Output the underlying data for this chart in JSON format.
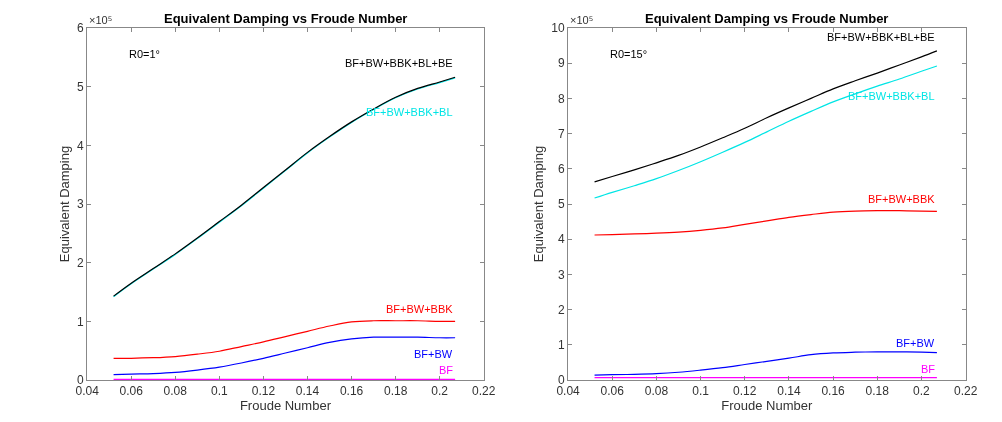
{
  "chart_data": [
    {
      "type": "line",
      "title": "Equivalent Damping vs Froude Number",
      "xlabel": "Froude Number",
      "ylabel": "Equivalent Damping",
      "annotations": [
        "R0=1°",
        "×10⁵"
      ],
      "x": [
        0.052,
        0.06,
        0.07,
        0.08,
        0.09,
        0.1,
        0.11,
        0.12,
        0.13,
        0.14,
        0.15,
        0.16,
        0.17,
        0.18,
        0.19,
        0.2,
        0.207
      ],
      "series": [
        {
          "name": "BF",
          "color": "#ff00ff",
          "values": [
            0.01,
            0.01,
            0.01,
            0.01,
            0.01,
            0.01,
            0.01,
            0.01,
            0.01,
            0.01,
            0.01,
            0.01,
            0.01,
            0.01,
            0.01,
            0.01,
            0.01
          ]
        },
        {
          "name": "BF+BW",
          "color": "#0000ff",
          "values": [
            0.09,
            0.1,
            0.11,
            0.13,
            0.17,
            0.22,
            0.29,
            0.37,
            0.46,
            0.55,
            0.64,
            0.7,
            0.73,
            0.73,
            0.73,
            0.72,
            0.72
          ]
        },
        {
          "name": "BF+BW+BBK",
          "color": "#ff0000",
          "values": [
            0.37,
            0.37,
            0.38,
            0.4,
            0.44,
            0.49,
            0.57,
            0.65,
            0.74,
            0.83,
            0.92,
            0.99,
            1.01,
            1.01,
            1.01,
            1.0,
            1.0
          ]
        },
        {
          "name": "BF+BW+BBK+BL",
          "color": "#00e5e5",
          "values": [
            1.42,
            1.64,
            1.89,
            2.14,
            2.41,
            2.69,
            2.97,
            3.27,
            3.57,
            3.87,
            4.14,
            4.39,
            4.61,
            4.81,
            4.96,
            5.07,
            5.15
          ]
        },
        {
          "name": "BF+BW+BBK+BL+BE",
          "color": "#000000",
          "values": [
            1.43,
            1.65,
            1.9,
            2.15,
            2.42,
            2.7,
            2.98,
            3.28,
            3.58,
            3.88,
            4.15,
            4.4,
            4.62,
            4.82,
            4.97,
            5.08,
            5.16
          ]
        }
      ],
      "xlim": [
        0.04,
        0.22
      ],
      "xticks": [
        0.04,
        0.06,
        0.08,
        0.1,
        0.12,
        0.14,
        0.16,
        0.18,
        0.2,
        0.22
      ],
      "ylim": [
        0,
        6
      ],
      "yticks": [
        0,
        1,
        2,
        3,
        4,
        5,
        6
      ]
    },
    {
      "type": "line",
      "title": "Equivalent Damping vs Froude Number",
      "xlabel": "Froude Number",
      "ylabel": "Equivalent Damping",
      "annotations": [
        "R0=15°",
        "×10⁵"
      ],
      "x": [
        0.052,
        0.06,
        0.07,
        0.08,
        0.09,
        0.1,
        0.11,
        0.12,
        0.13,
        0.14,
        0.15,
        0.16,
        0.17,
        0.18,
        0.19,
        0.2,
        0.207
      ],
      "series": [
        {
          "name": "BF",
          "color": "#ff00ff",
          "values": [
            0.07,
            0.07,
            0.07,
            0.07,
            0.07,
            0.07,
            0.07,
            0.07,
            0.07,
            0.07,
            0.07,
            0.07,
            0.07,
            0.07,
            0.07,
            0.07,
            0.07
          ]
        },
        {
          "name": "BF+BW",
          "color": "#0000ff",
          "values": [
            0.14,
            0.15,
            0.16,
            0.18,
            0.22,
            0.28,
            0.35,
            0.44,
            0.53,
            0.62,
            0.72,
            0.77,
            0.79,
            0.8,
            0.8,
            0.79,
            0.78
          ]
        },
        {
          "name": "BF+BW+BBK",
          "color": "#ff0000",
          "values": [
            4.12,
            4.13,
            4.15,
            4.17,
            4.2,
            4.25,
            4.32,
            4.42,
            4.52,
            4.62,
            4.7,
            4.77,
            4.8,
            4.81,
            4.81,
            4.8,
            4.79
          ]
        },
        {
          "name": "BF+BW+BBK+BL",
          "color": "#00e5e5",
          "values": [
            5.17,
            5.33,
            5.52,
            5.72,
            5.95,
            6.2,
            6.47,
            6.75,
            7.05,
            7.35,
            7.63,
            7.9,
            8.13,
            8.35,
            8.55,
            8.77,
            8.92
          ]
        },
        {
          "name": "BF+BW+BBK+BL+BE",
          "color": "#000000",
          "values": [
            5.63,
            5.78,
            5.97,
            6.17,
            6.38,
            6.62,
            6.88,
            7.15,
            7.45,
            7.73,
            8.0,
            8.27,
            8.5,
            8.72,
            8.95,
            9.18,
            9.35
          ]
        }
      ],
      "xlim": [
        0.04,
        0.22
      ],
      "xticks": [
        0.04,
        0.06,
        0.08,
        0.1,
        0.12,
        0.14,
        0.16,
        0.18,
        0.2,
        0.22
      ],
      "ylim": [
        0,
        10
      ],
      "yticks": [
        0,
        1,
        2,
        3,
        4,
        5,
        6,
        7,
        8,
        9,
        10
      ]
    }
  ]
}
